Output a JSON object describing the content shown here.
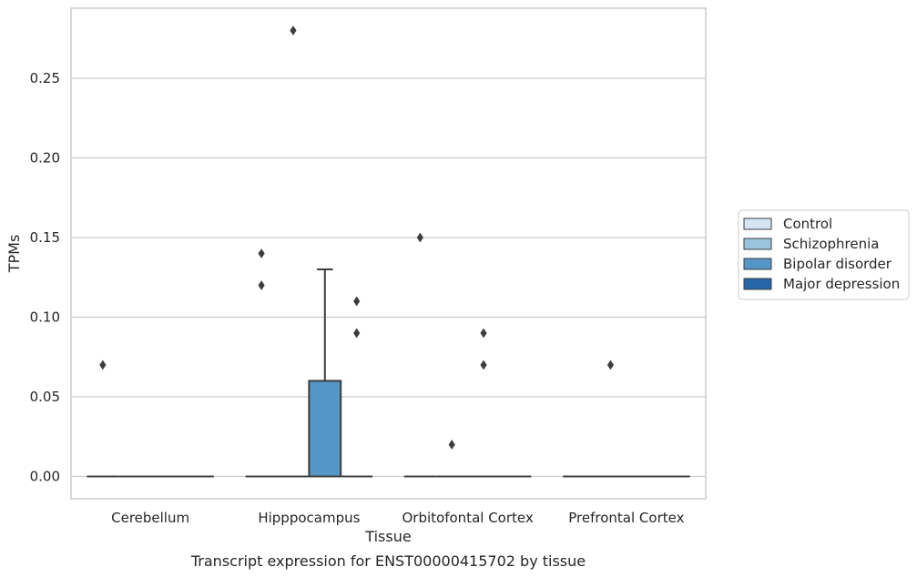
{
  "chart_data": {
    "type": "box",
    "title": "",
    "caption": "Transcript expression for ENST00000415702 by tissue",
    "xlabel": "Tissue",
    "ylabel": "TPMs",
    "ylim": [
      -0.014,
      0.294
    ],
    "yticks": [
      "0.00",
      "0.05",
      "0.10",
      "0.15",
      "0.20",
      "0.25"
    ],
    "ytick_values": [
      0,
      0.05,
      0.1,
      0.15,
      0.2,
      0.25
    ],
    "grid": true,
    "legend_position": "right",
    "categories": [
      "Cerebellum",
      "Hipppocampus",
      "Orbitofontal Cortex",
      "Prefrontal Cortex"
    ],
    "series": [
      {
        "name": "Control",
        "color": "#d4e4f2",
        "boxes": [
          {
            "q1": 0,
            "median": 0,
            "q3": 0,
            "whisker_low": 0,
            "whisker_high": 0,
            "outliers": [
              0.07
            ]
          },
          {
            "q1": 0,
            "median": 0,
            "q3": 0,
            "whisker_low": 0,
            "whisker_high": 0,
            "outliers": [
              0.14,
              0.12
            ]
          },
          {
            "q1": 0,
            "median": 0,
            "q3": 0,
            "whisker_low": 0,
            "whisker_high": 0,
            "outliers": [
              0.15
            ]
          },
          {
            "q1": 0,
            "median": 0,
            "q3": 0,
            "whisker_low": 0,
            "whisker_high": 0,
            "outliers": []
          }
        ]
      },
      {
        "name": "Schizophrenia",
        "color": "#9ac4dd",
        "boxes": [
          {
            "q1": 0,
            "median": 0,
            "q3": 0,
            "whisker_low": 0,
            "whisker_high": 0,
            "outliers": []
          },
          {
            "q1": 0,
            "median": 0,
            "q3": 0,
            "whisker_low": 0,
            "whisker_high": 0,
            "outliers": [
              0.28
            ]
          },
          {
            "q1": 0,
            "median": 0,
            "q3": 0,
            "whisker_low": 0,
            "whisker_high": 0,
            "outliers": [
              0.02
            ]
          },
          {
            "q1": 0,
            "median": 0,
            "q3": 0,
            "whisker_low": 0,
            "whisker_high": 0,
            "outliers": [
              0.07
            ]
          }
        ]
      },
      {
        "name": "Bipolar disorder",
        "color": "#5496c6",
        "boxes": [
          {
            "q1": 0,
            "median": 0,
            "q3": 0,
            "whisker_low": 0,
            "whisker_high": 0,
            "outliers": []
          },
          {
            "q1": 0,
            "median": 0,
            "q3": 0.06,
            "whisker_low": 0,
            "whisker_high": 0.13,
            "outliers": []
          },
          {
            "q1": 0,
            "median": 0,
            "q3": 0,
            "whisker_low": 0,
            "whisker_high": 0,
            "outliers": [
              0.09,
              0.07
            ]
          },
          {
            "q1": 0,
            "median": 0,
            "q3": 0,
            "whisker_low": 0,
            "whisker_high": 0,
            "outliers": []
          }
        ]
      },
      {
        "name": "Major depression",
        "color": "#2466a8",
        "boxes": [
          {
            "q1": 0,
            "median": 0,
            "q3": 0,
            "whisker_low": 0,
            "whisker_high": 0,
            "outliers": []
          },
          {
            "q1": 0,
            "median": 0,
            "q3": 0,
            "whisker_low": 0,
            "whisker_high": 0,
            "outliers": [
              0.11,
              0.09
            ]
          },
          {
            "q1": 0,
            "median": 0,
            "q3": 0,
            "whisker_low": 0,
            "whisker_high": 0,
            "outliers": []
          },
          {
            "q1": 0,
            "median": 0,
            "q3": 0,
            "whisker_low": 0,
            "whisker_high": 0,
            "outliers": []
          }
        ]
      }
    ]
  }
}
